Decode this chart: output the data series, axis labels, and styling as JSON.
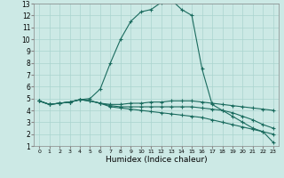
{
  "xlabel": "Humidex (Indice chaleur)",
  "xlim": [
    -0.5,
    23.5
  ],
  "ylim": [
    1,
    13
  ],
  "xticks": [
    0,
    1,
    2,
    3,
    4,
    5,
    6,
    7,
    8,
    9,
    10,
    11,
    12,
    13,
    14,
    15,
    16,
    17,
    18,
    19,
    20,
    21,
    22,
    23
  ],
  "yticks": [
    1,
    2,
    3,
    4,
    5,
    6,
    7,
    8,
    9,
    10,
    11,
    12,
    13
  ],
  "bg_color": "#cce9e5",
  "line_color": "#1a6b5e",
  "grid_color": "#aad4cf",
  "curves": [
    [
      4.8,
      4.5,
      4.6,
      4.7,
      4.9,
      5.0,
      5.8,
      8.0,
      10.0,
      11.5,
      12.3,
      12.5,
      13.1,
      13.3,
      12.5,
      12.0,
      7.5,
      4.5,
      4.0,
      3.5,
      3.0,
      2.5,
      2.2,
      1.3
    ],
    [
      4.8,
      4.5,
      4.6,
      4.7,
      4.9,
      4.8,
      4.6,
      4.5,
      4.5,
      4.6,
      4.6,
      4.7,
      4.7,
      4.8,
      4.8,
      4.8,
      4.7,
      4.6,
      4.5,
      4.4,
      4.3,
      4.2,
      4.1,
      4.0
    ],
    [
      4.8,
      4.5,
      4.6,
      4.7,
      4.9,
      4.8,
      4.6,
      4.4,
      4.3,
      4.3,
      4.3,
      4.3,
      4.3,
      4.3,
      4.3,
      4.3,
      4.2,
      4.1,
      4.0,
      3.8,
      3.5,
      3.2,
      2.8,
      2.5
    ],
    [
      4.8,
      4.5,
      4.6,
      4.7,
      4.9,
      4.8,
      4.6,
      4.3,
      4.2,
      4.1,
      4.0,
      3.9,
      3.8,
      3.7,
      3.6,
      3.5,
      3.4,
      3.2,
      3.0,
      2.8,
      2.6,
      2.4,
      2.2,
      2.0
    ]
  ]
}
